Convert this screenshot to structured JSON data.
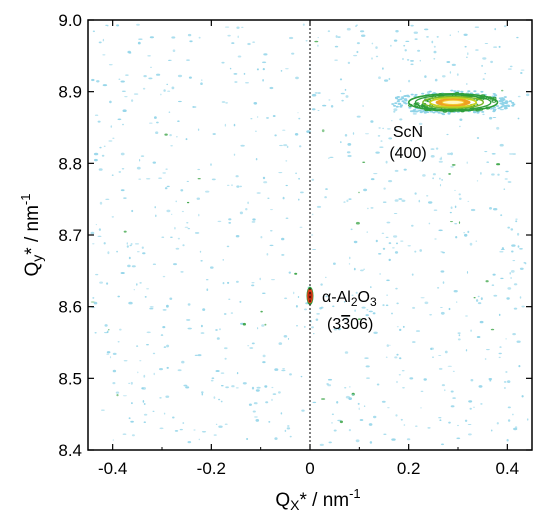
{
  "chart_data": {
    "type": "heatmap",
    "title": "",
    "xlabel": {
      "main": "Q",
      "sub": "X",
      "rest": "* / nm",
      "sup": "-1"
    },
    "ylabel": {
      "main": "Q",
      "sub": "y",
      "rest": "* / nm",
      "sup": "-1"
    },
    "xlim": [
      -0.45,
      0.45
    ],
    "ylim": [
      8.4,
      9.0
    ],
    "x_ticks": [
      -0.4,
      -0.2,
      0.0,
      0.2,
      0.4
    ],
    "x_tick_labels": [
      "-0.4",
      "-0.2",
      "0",
      "0.2",
      "0.4"
    ],
    "y_ticks": [
      8.4,
      8.5,
      8.6,
      8.7,
      8.8,
      8.9,
      9.0
    ],
    "y_tick_labels": [
      "8.4",
      "8.5",
      "8.6",
      "8.7",
      "8.8",
      "8.9",
      "9.0"
    ],
    "reference_line_x": 0.0,
    "peaks": [
      {
        "label": "ScN",
        "hkl": "(400)",
        "qx": 0.29,
        "qy": 8.885,
        "width_qx": 0.09,
        "width_qy": 0.012
      },
      {
        "label": "α-Al2O3",
        "hkl": "(3306)",
        "qx": 0.0,
        "qy": 8.615,
        "width_qx": 0.006,
        "width_qy": 0.012
      }
    ],
    "colors": {
      "background_noise": "#8fd3e8",
      "low": "#2e9e3a",
      "mid": "#c8d21e",
      "high": "#f0a020",
      "peak": "#e0401a",
      "top": "#fff8c0"
    }
  },
  "annotations": {
    "scn_name": "ScN",
    "scn_hkl": "(400)",
    "al2o3_name_prefix": "α-Al",
    "al2o3_sub1": "2",
    "al2o3_mid": "O",
    "al2o3_sub2": "3",
    "al2o3_hkl_open": "(3",
    "al2o3_hkl_bar": "3",
    "al2o3_hkl_close": "06)"
  }
}
